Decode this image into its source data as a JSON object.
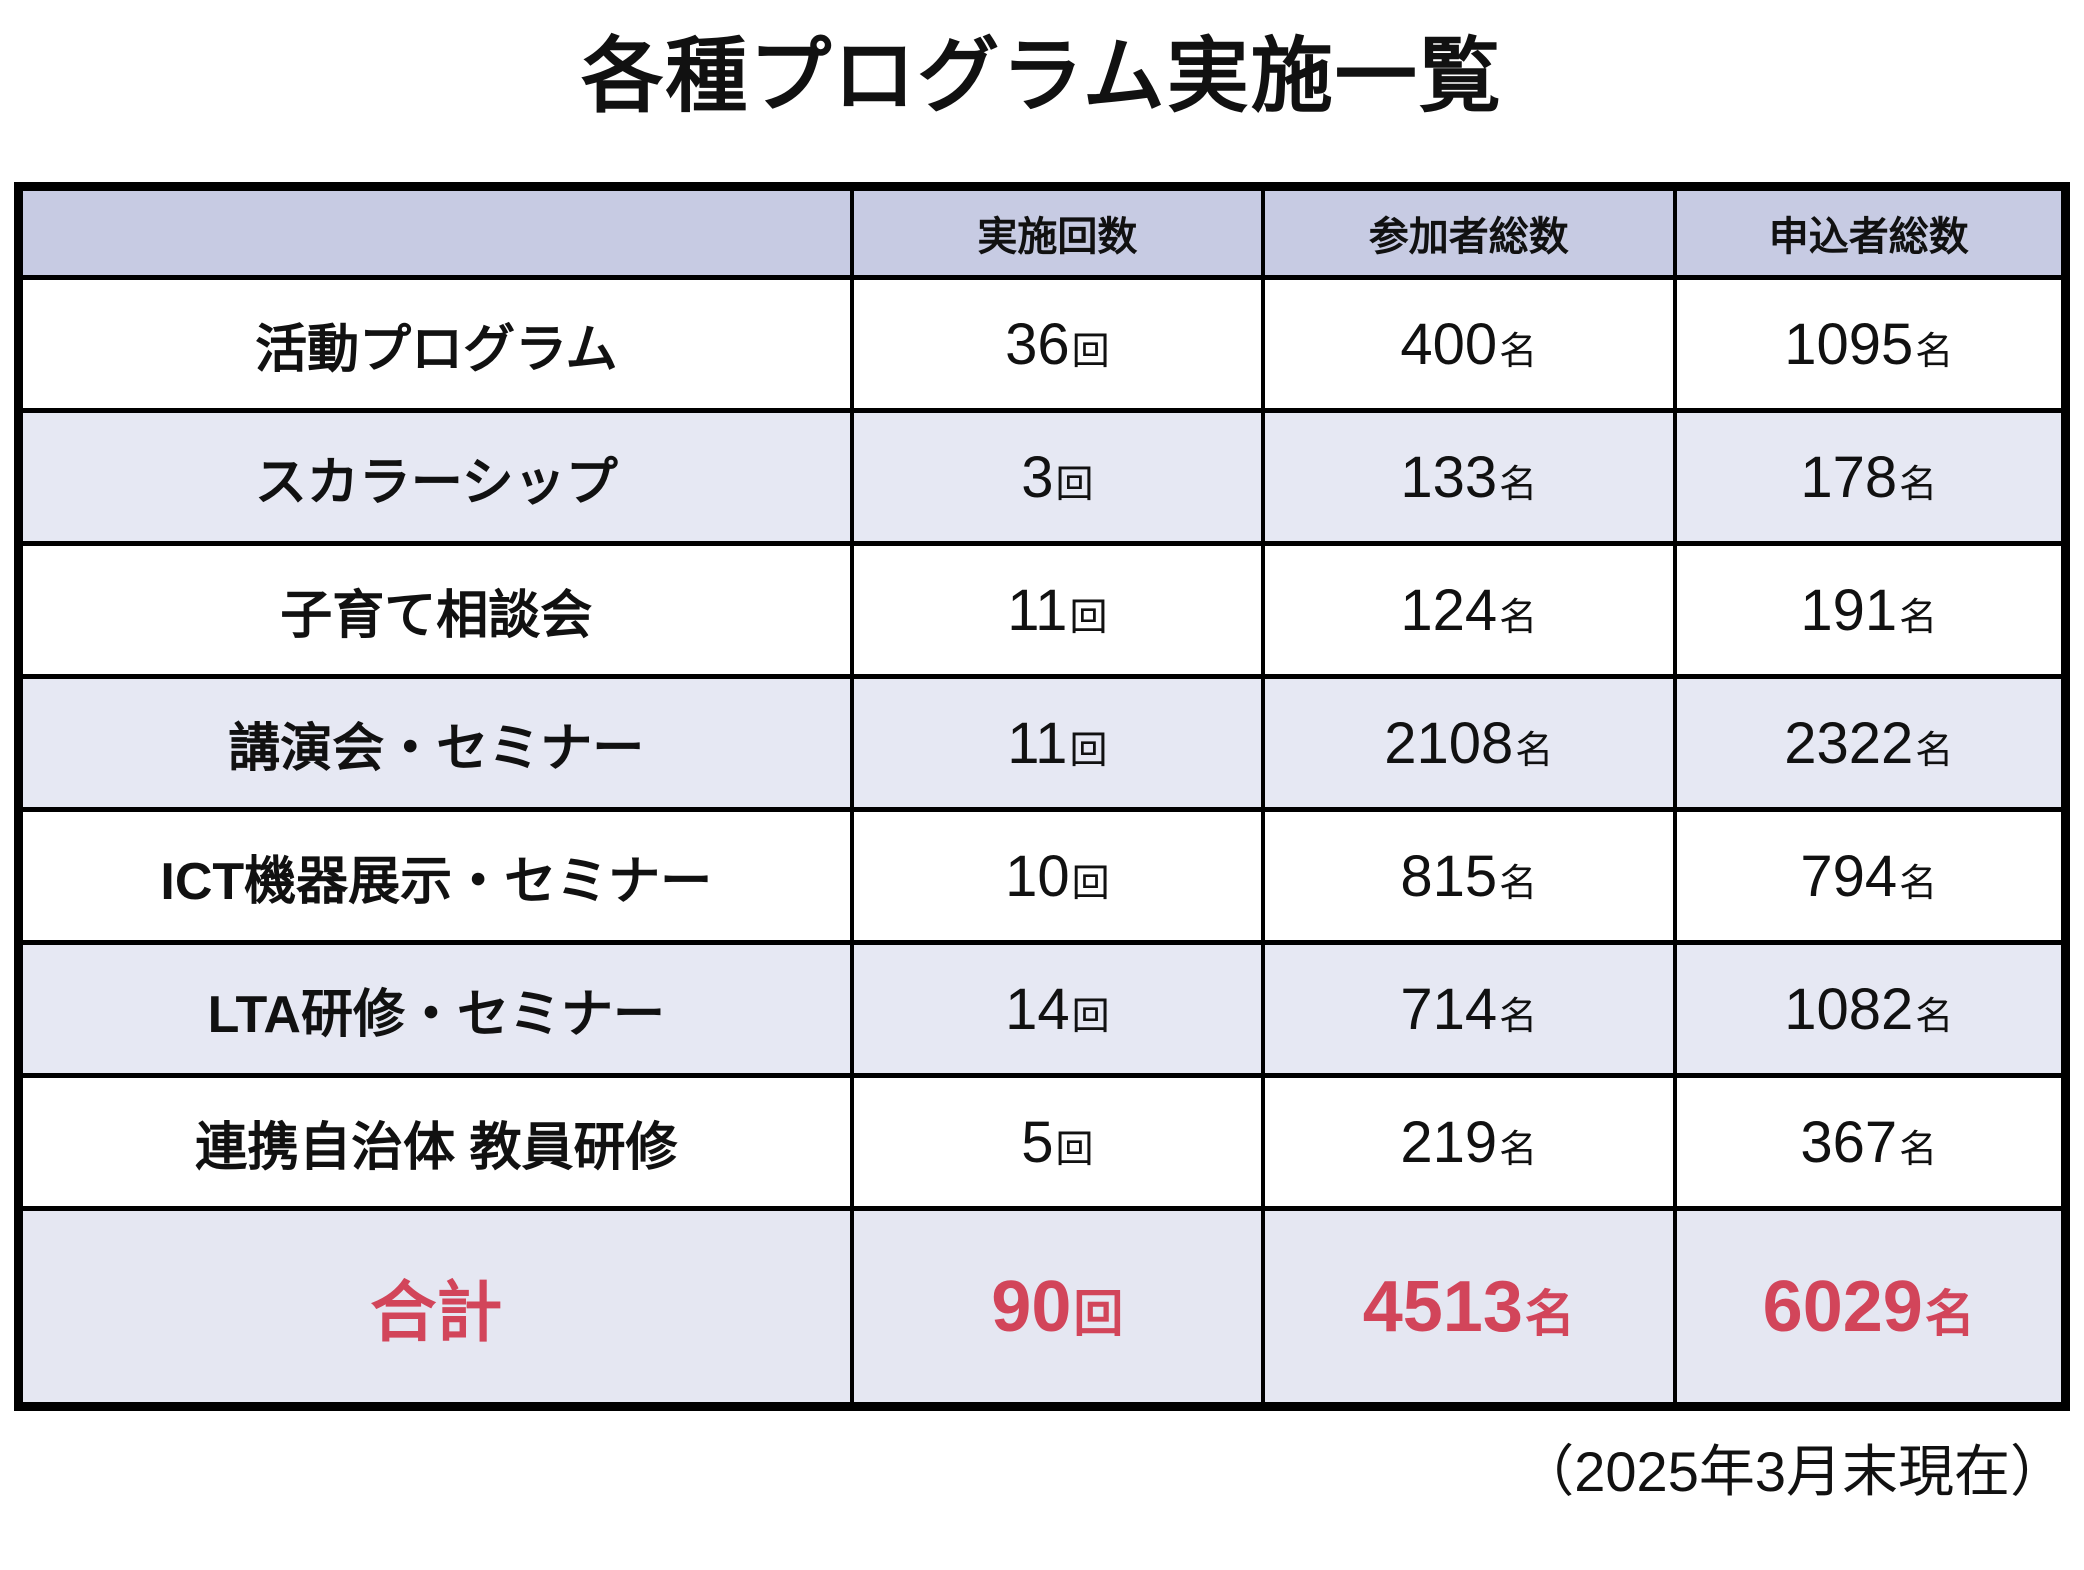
{
  "page": {
    "title": "各種プログラム実施一覧",
    "footnote": "（2025年3月末現在）"
  },
  "table": {
    "headers": {
      "name": "",
      "sessions": "実施回数",
      "participants": "参加者総数",
      "applicants": "申込者総数"
    },
    "units": {
      "sessions": "回",
      "people": "名"
    },
    "rows": [
      {
        "name": "活動プログラム",
        "sessions": "36",
        "participants": "400",
        "applicants": "1095"
      },
      {
        "name": "スカラーシップ",
        "sessions": "3",
        "participants": "133",
        "applicants": "178"
      },
      {
        "name": "子育て相談会",
        "sessions": "11",
        "participants": "124",
        "applicants": "191"
      },
      {
        "name": "講演会・セミナー",
        "sessions": "11",
        "participants": "2108",
        "applicants": "2322"
      },
      {
        "name": "ICT機器展示・セミナー",
        "sessions": "10",
        "participants": "815",
        "applicants": "794"
      },
      {
        "name": "LTA研修・セミナー",
        "sessions": "14",
        "participants": "714",
        "applicants": "1082"
      },
      {
        "name": "連携自治体 教員研修",
        "sessions": "5",
        "participants": "219",
        "applicants": "367"
      }
    ],
    "total": {
      "name": "合計",
      "sessions": "90",
      "participants": "4513",
      "applicants": "6029"
    }
  },
  "colors": {
    "header_bg": "#c7cbe3",
    "alt_row_bg": "#e6e8f3",
    "total_row_bg": "#e5e7f2",
    "accent_red": "#d2455a",
    "border": "#000000",
    "text": "#111111"
  },
  "chart_data": {
    "type": "table",
    "title": "各種プログラム実施一覧",
    "columns": [
      "実施回数",
      "参加者総数",
      "申込者総数"
    ],
    "column_units": [
      "回",
      "名",
      "名"
    ],
    "rows": [
      {
        "label": "活動プログラム",
        "values": [
          36,
          400,
          1095
        ]
      },
      {
        "label": "スカラーシップ",
        "values": [
          3,
          133,
          178
        ]
      },
      {
        "label": "子育て相談会",
        "values": [
          11,
          124,
          191
        ]
      },
      {
        "label": "講演会・セミナー",
        "values": [
          11,
          2108,
          2322
        ]
      },
      {
        "label": "ICT機器展示・セミナー",
        "values": [
          10,
          815,
          794
        ]
      },
      {
        "label": "LTA研修・セミナー",
        "values": [
          14,
          714,
          1082
        ]
      },
      {
        "label": "連携自治体 教員研修",
        "values": [
          5,
          219,
          367
        ]
      }
    ],
    "total": {
      "label": "合計",
      "values": [
        90,
        4513,
        6029
      ]
    },
    "annotation": "（2025年3月末現在）"
  }
}
